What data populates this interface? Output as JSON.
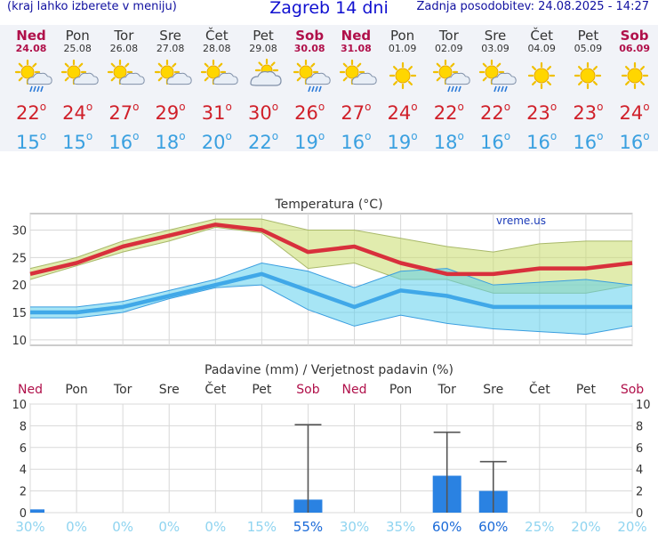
{
  "header": {
    "left_note": "(kraj lahko izberete v meniju)",
    "title": "Zagreb 14 dni",
    "updated": "Zadnja posodobitev: 24.08.2025 - 14:27"
  },
  "days": [
    {
      "name": "Ned",
      "date": "24.08",
      "weekend": true,
      "icon": "sun-cloud-rain-icon",
      "max": "22",
      "min": "15"
    },
    {
      "name": "Pon",
      "date": "25.08",
      "weekend": false,
      "icon": "sun-cloud-icon",
      "max": "24",
      "min": "15"
    },
    {
      "name": "Tor",
      "date": "26.08",
      "weekend": false,
      "icon": "sun-cloud-icon",
      "max": "27",
      "min": "16"
    },
    {
      "name": "Sre",
      "date": "27.08",
      "weekend": false,
      "icon": "sun-cloud-icon",
      "max": "29",
      "min": "18"
    },
    {
      "name": "Čet",
      "date": "28.08",
      "weekend": false,
      "icon": "sun-cloud-icon",
      "max": "31",
      "min": "20"
    },
    {
      "name": "Pet",
      "date": "29.08",
      "weekend": false,
      "icon": "cloud-sun-icon",
      "max": "30",
      "min": "22"
    },
    {
      "name": "Sob",
      "date": "30.08",
      "weekend": true,
      "icon": "sun-cloud-rain-icon",
      "max": "26",
      "min": "19"
    },
    {
      "name": "Ned",
      "date": "31.08",
      "weekend": true,
      "icon": "sun-cloud-icon",
      "max": "27",
      "min": "16"
    },
    {
      "name": "Pon",
      "date": "01.09",
      "weekend": false,
      "icon": "sun-icon",
      "max": "24",
      "min": "19"
    },
    {
      "name": "Tor",
      "date": "02.09",
      "weekend": false,
      "icon": "sun-cloud-rain-icon",
      "max": "22",
      "min": "18"
    },
    {
      "name": "Sre",
      "date": "03.09",
      "weekend": false,
      "icon": "sun-cloud-rain-icon",
      "max": "22",
      "min": "16"
    },
    {
      "name": "Čet",
      "date": "04.09",
      "weekend": false,
      "icon": "sun-icon",
      "max": "23",
      "min": "16"
    },
    {
      "name": "Pet",
      "date": "05.09",
      "weekend": false,
      "icon": "sun-icon",
      "max": "23",
      "min": "16"
    },
    {
      "name": "Sob",
      "date": "06.09",
      "weekend": true,
      "icon": "sun-icon",
      "max": "24",
      "min": "16"
    }
  ],
  "chart_data": [
    {
      "type": "line",
      "title": "Temperatura (°C)",
      "watermark": "vreme.us",
      "x": [
        "24.08",
        "25.08",
        "26.08",
        "27.08",
        "28.08",
        "29.08",
        "30.08",
        "31.08",
        "01.09",
        "02.09",
        "03.09",
        "04.09",
        "05.09",
        "06.09"
      ],
      "ylim": [
        9,
        33
      ],
      "yticks": [
        10,
        15,
        20,
        25,
        30
      ],
      "grid": true,
      "series": [
        {
          "role": "max",
          "color": "#d8303c",
          "values": [
            22,
            24,
            27,
            29,
            31,
            30,
            26,
            27,
            24,
            22,
            22,
            23,
            23,
            24
          ]
        },
        {
          "role": "max_high",
          "color": "#a9b96a",
          "values": [
            23,
            25,
            28,
            30,
            32,
            32,
            30,
            30,
            28.5,
            27,
            26,
            27.5,
            28,
            28
          ]
        },
        {
          "role": "max_low",
          "color": "#a9b96a",
          "values": [
            21,
            23.5,
            26,
            28,
            30.5,
            29.5,
            23,
            24,
            21,
            21,
            18.5,
            18.5,
            18.5,
            20
          ]
        },
        {
          "role": "min",
          "color": "#40a8e8",
          "values": [
            15,
            15,
            16,
            18,
            20,
            22,
            19,
            16,
            19,
            18,
            16,
            16,
            16,
            16
          ]
        },
        {
          "role": "min_high",
          "color": "#3a9ee0",
          "values": [
            16,
            16,
            17,
            19,
            21,
            24,
            22.5,
            19.5,
            22.5,
            23,
            20,
            20.5,
            21,
            20
          ]
        },
        {
          "role": "min_low",
          "color": "#3a9ee0",
          "values": [
            14,
            14,
            15,
            17.5,
            19.5,
            20,
            15.5,
            12.5,
            14.5,
            13,
            12,
            11.5,
            11,
            12.5
          ]
        }
      ]
    },
    {
      "type": "bar",
      "title": "Padavine (mm) / Verjetnost padavin (%)",
      "categories": [
        "Ned",
        "Pon",
        "Tor",
        "Sre",
        "Čet",
        "Pet",
        "Sob",
        "Ned",
        "Pon",
        "Tor",
        "Sre",
        "Čet",
        "Pet",
        "Sob"
      ],
      "weekend": [
        true,
        false,
        false,
        false,
        false,
        false,
        true,
        true,
        false,
        false,
        false,
        false,
        false,
        true
      ],
      "ylim": [
        0,
        10
      ],
      "yticks": [
        0,
        2,
        4,
        6,
        8,
        10
      ],
      "values": [
        0.3,
        0,
        0,
        0,
        0,
        0,
        1.2,
        0,
        0,
        3.4,
        2.0,
        0,
        0,
        0
      ],
      "error_high": [
        0,
        0,
        0,
        0,
        0,
        0,
        8.1,
        0,
        0,
        7.4,
        4.7,
        0,
        0,
        0
      ],
      "probability": [
        "30%",
        "0%",
        "0%",
        "0%",
        "0%",
        "15%",
        "55%",
        "30%",
        "35%",
        "60%",
        "60%",
        "25%",
        "20%",
        "20%"
      ],
      "bar_color": "#2a82e2"
    }
  ]
}
